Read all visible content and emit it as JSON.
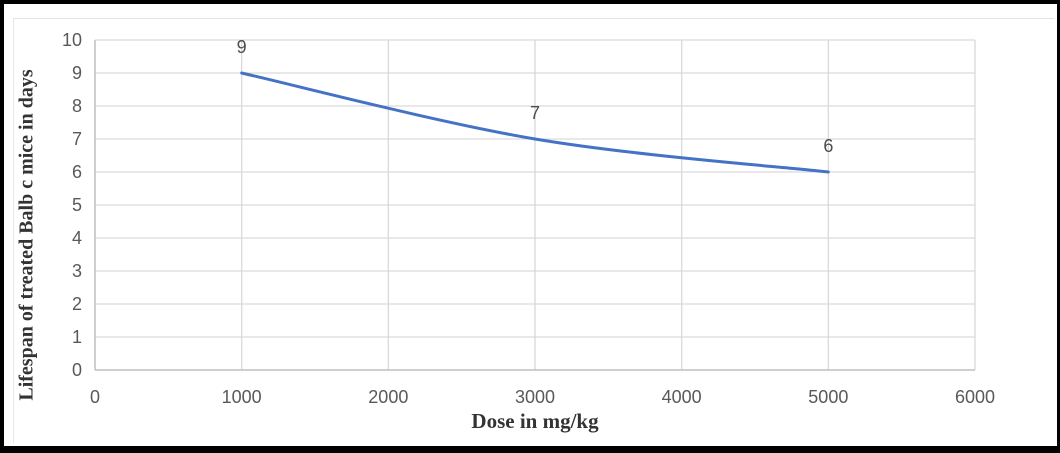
{
  "chart_data": {
    "type": "line",
    "title": "",
    "xlabel": "Dose in mg/kg",
    "ylabel": "Lifespan of treated Balb c mice in days",
    "x": [
      1000,
      3000,
      5000
    ],
    "y": [
      9,
      7,
      6
    ],
    "data_labels": [
      "9",
      "7",
      "6"
    ],
    "xlim": [
      0,
      6000
    ],
    "ylim": [
      0,
      10
    ],
    "x_ticks": [
      0,
      1000,
      2000,
      3000,
      4000,
      5000,
      6000
    ],
    "y_ticks": [
      0,
      1,
      2,
      3,
      4,
      5,
      6,
      7,
      8,
      9,
      10
    ],
    "grid": "on",
    "legend": "none",
    "smooth": true
  },
  "colors": {
    "line": "#4472C4",
    "gridline": "#D9D9D9",
    "axis_line": "#BFBFBF",
    "tick_label": "#595959",
    "data_label": "#4D4D4D",
    "axis_title": "#333333",
    "frame_border": "#000000",
    "background": "#FFFFFF"
  }
}
